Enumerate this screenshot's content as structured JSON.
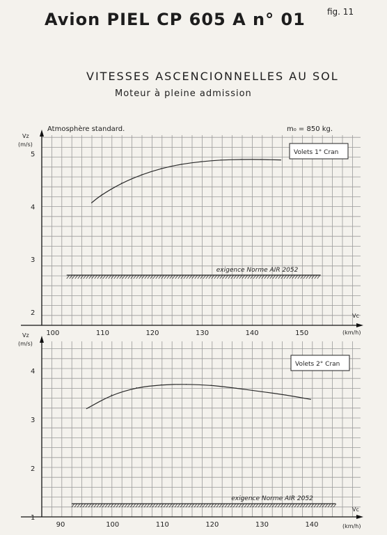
{
  "header": {
    "title": "Avion  PIEL  CP 605 A n° 01",
    "fig": "fig. 11",
    "heading": "VITESSES  ASCENCIONNELLES  AU  SOL",
    "subheading": "Moteur  à  pleine  admission",
    "atmosphere": "Atmosphère standard.",
    "mass": "m₀ = 850 kg."
  },
  "chart_data": [
    {
      "type": "line",
      "panel": "Volets 1° Cran",
      "ylabel_symbol": "Vz",
      "ylabel_unit": "(m/s)",
      "xlabel_symbol": "Vc",
      "xlabel_unit": "(km/h)",
      "xlim": [
        98,
        162
      ],
      "ylim": [
        1.75,
        5.35
      ],
      "xticks": [
        100,
        110,
        120,
        130,
        140,
        150
      ],
      "yticks": [
        2,
        3,
        4,
        5
      ],
      "series": [
        {
          "x": [
            108,
            110,
            114,
            118,
            122,
            126,
            130,
            134,
            138,
            142,
            146
          ],
          "y": [
            4.07,
            4.22,
            4.44,
            4.6,
            4.72,
            4.8,
            4.85,
            4.88,
            4.89,
            4.89,
            4.88
          ]
        }
      ],
      "requirement": {
        "label": "exigence  Norme AIR 2052",
        "value": 2.7,
        "x_range": [
          103,
          154
        ]
      }
    },
    {
      "type": "line",
      "panel": "Volets 2° Cran",
      "ylabel_symbol": "Vz",
      "ylabel_unit": "(m/s)",
      "xlabel_symbol": "Vc",
      "xlabel_unit": "(km/h)",
      "xlim": [
        86,
        150
      ],
      "ylim": [
        1,
        4.6
      ],
      "xticks": [
        90,
        100,
        110,
        120,
        130,
        140
      ],
      "yticks": [
        1,
        2,
        3,
        4
      ],
      "series": [
        {
          "x": [
            95,
            100,
            105,
            110,
            115,
            120,
            125,
            130,
            135,
            140
          ],
          "y": [
            3.22,
            3.5,
            3.65,
            3.71,
            3.72,
            3.7,
            3.64,
            3.57,
            3.5,
            3.41
          ]
        }
      ],
      "requirement": {
        "label": "exigence     Norme AIR 2052",
        "value": 1.27,
        "x_range": [
          92,
          145
        ]
      }
    }
  ]
}
